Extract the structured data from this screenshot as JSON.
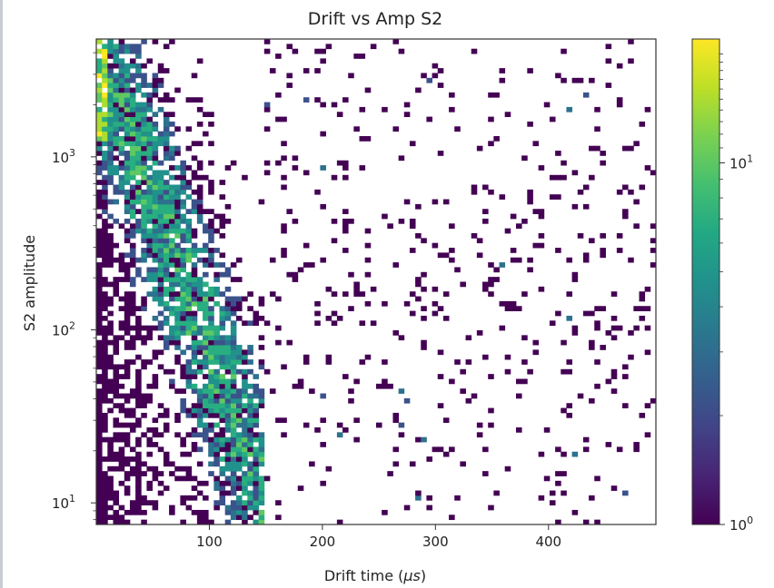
{
  "chart_data": {
    "type": "heatmap",
    "title": "Drift vs Amp S2",
    "xlabel": "Drift time (",
    "xlabel_unit": "μs",
    "ylabel": "S2 amplitude",
    "xlim": [
      0,
      495
    ],
    "ylim": [
      7.5,
      4800
    ],
    "yscale": "log",
    "x_ticks": [
      {
        "value": 100,
        "label": "100"
      },
      {
        "value": 200,
        "label": "200"
      },
      {
        "value": 300,
        "label": "300"
      },
      {
        "value": 400,
        "label": "400"
      }
    ],
    "y_ticks": [
      {
        "value": 10,
        "base": "10",
        "exp": "1"
      },
      {
        "value": 100,
        "base": "10",
        "exp": "2"
      },
      {
        "value": 1000,
        "base": "10",
        "exp": "3"
      }
    ],
    "colorbar": {
      "colormap": "viridis",
      "scale": "log",
      "range": [
        1,
        22
      ],
      "ticks": [
        {
          "value": 1,
          "base": "10",
          "exp": "0"
        },
        {
          "value": 10,
          "base": "10",
          "exp": "1"
        }
      ]
    },
    "bins": {
      "x_bins": 100,
      "y_bins": 100
    },
    "distribution": {
      "dense_band": "counts concentrated along a falling diagonal from about (5, 3000) to (130, 20)",
      "sparse_background": "isolated single-count bins spread over drift 0–495 and amplitude 8–4500"
    },
    "grid": false,
    "legend": "none"
  }
}
